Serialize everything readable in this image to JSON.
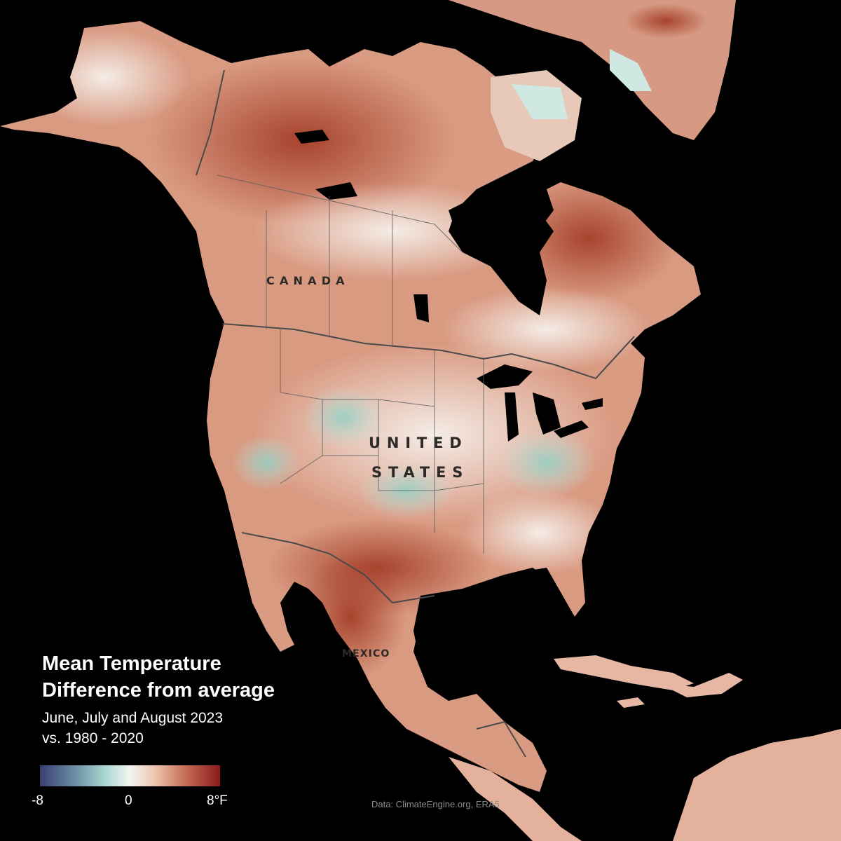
{
  "title": {
    "line1": "Mean Temperature",
    "line2": "Difference from average",
    "period": "June, July and August 2023",
    "baseline": "vs. 1980 - 2020"
  },
  "labels": {
    "canada": "CANADA",
    "us_line1": "UNITED",
    "us_line2": "STATES",
    "mexico": "MEXICO"
  },
  "legend": {
    "min": "-8",
    "mid": "0",
    "max": "8°F",
    "colors": [
      "#3a3f73",
      "#a9d8d2",
      "#f3f5f2",
      "#c7705a",
      "#8c1a1a"
    ]
  },
  "source": "Data: ClimateEngine.org, ERA5",
  "colors": {
    "background": "#000000",
    "strong_warm": "#a8442a",
    "warm": "#cf8a6e",
    "light_warm": "#eac7b6",
    "neutral": "#f2ece6",
    "cool": "#bfe3dc"
  }
}
